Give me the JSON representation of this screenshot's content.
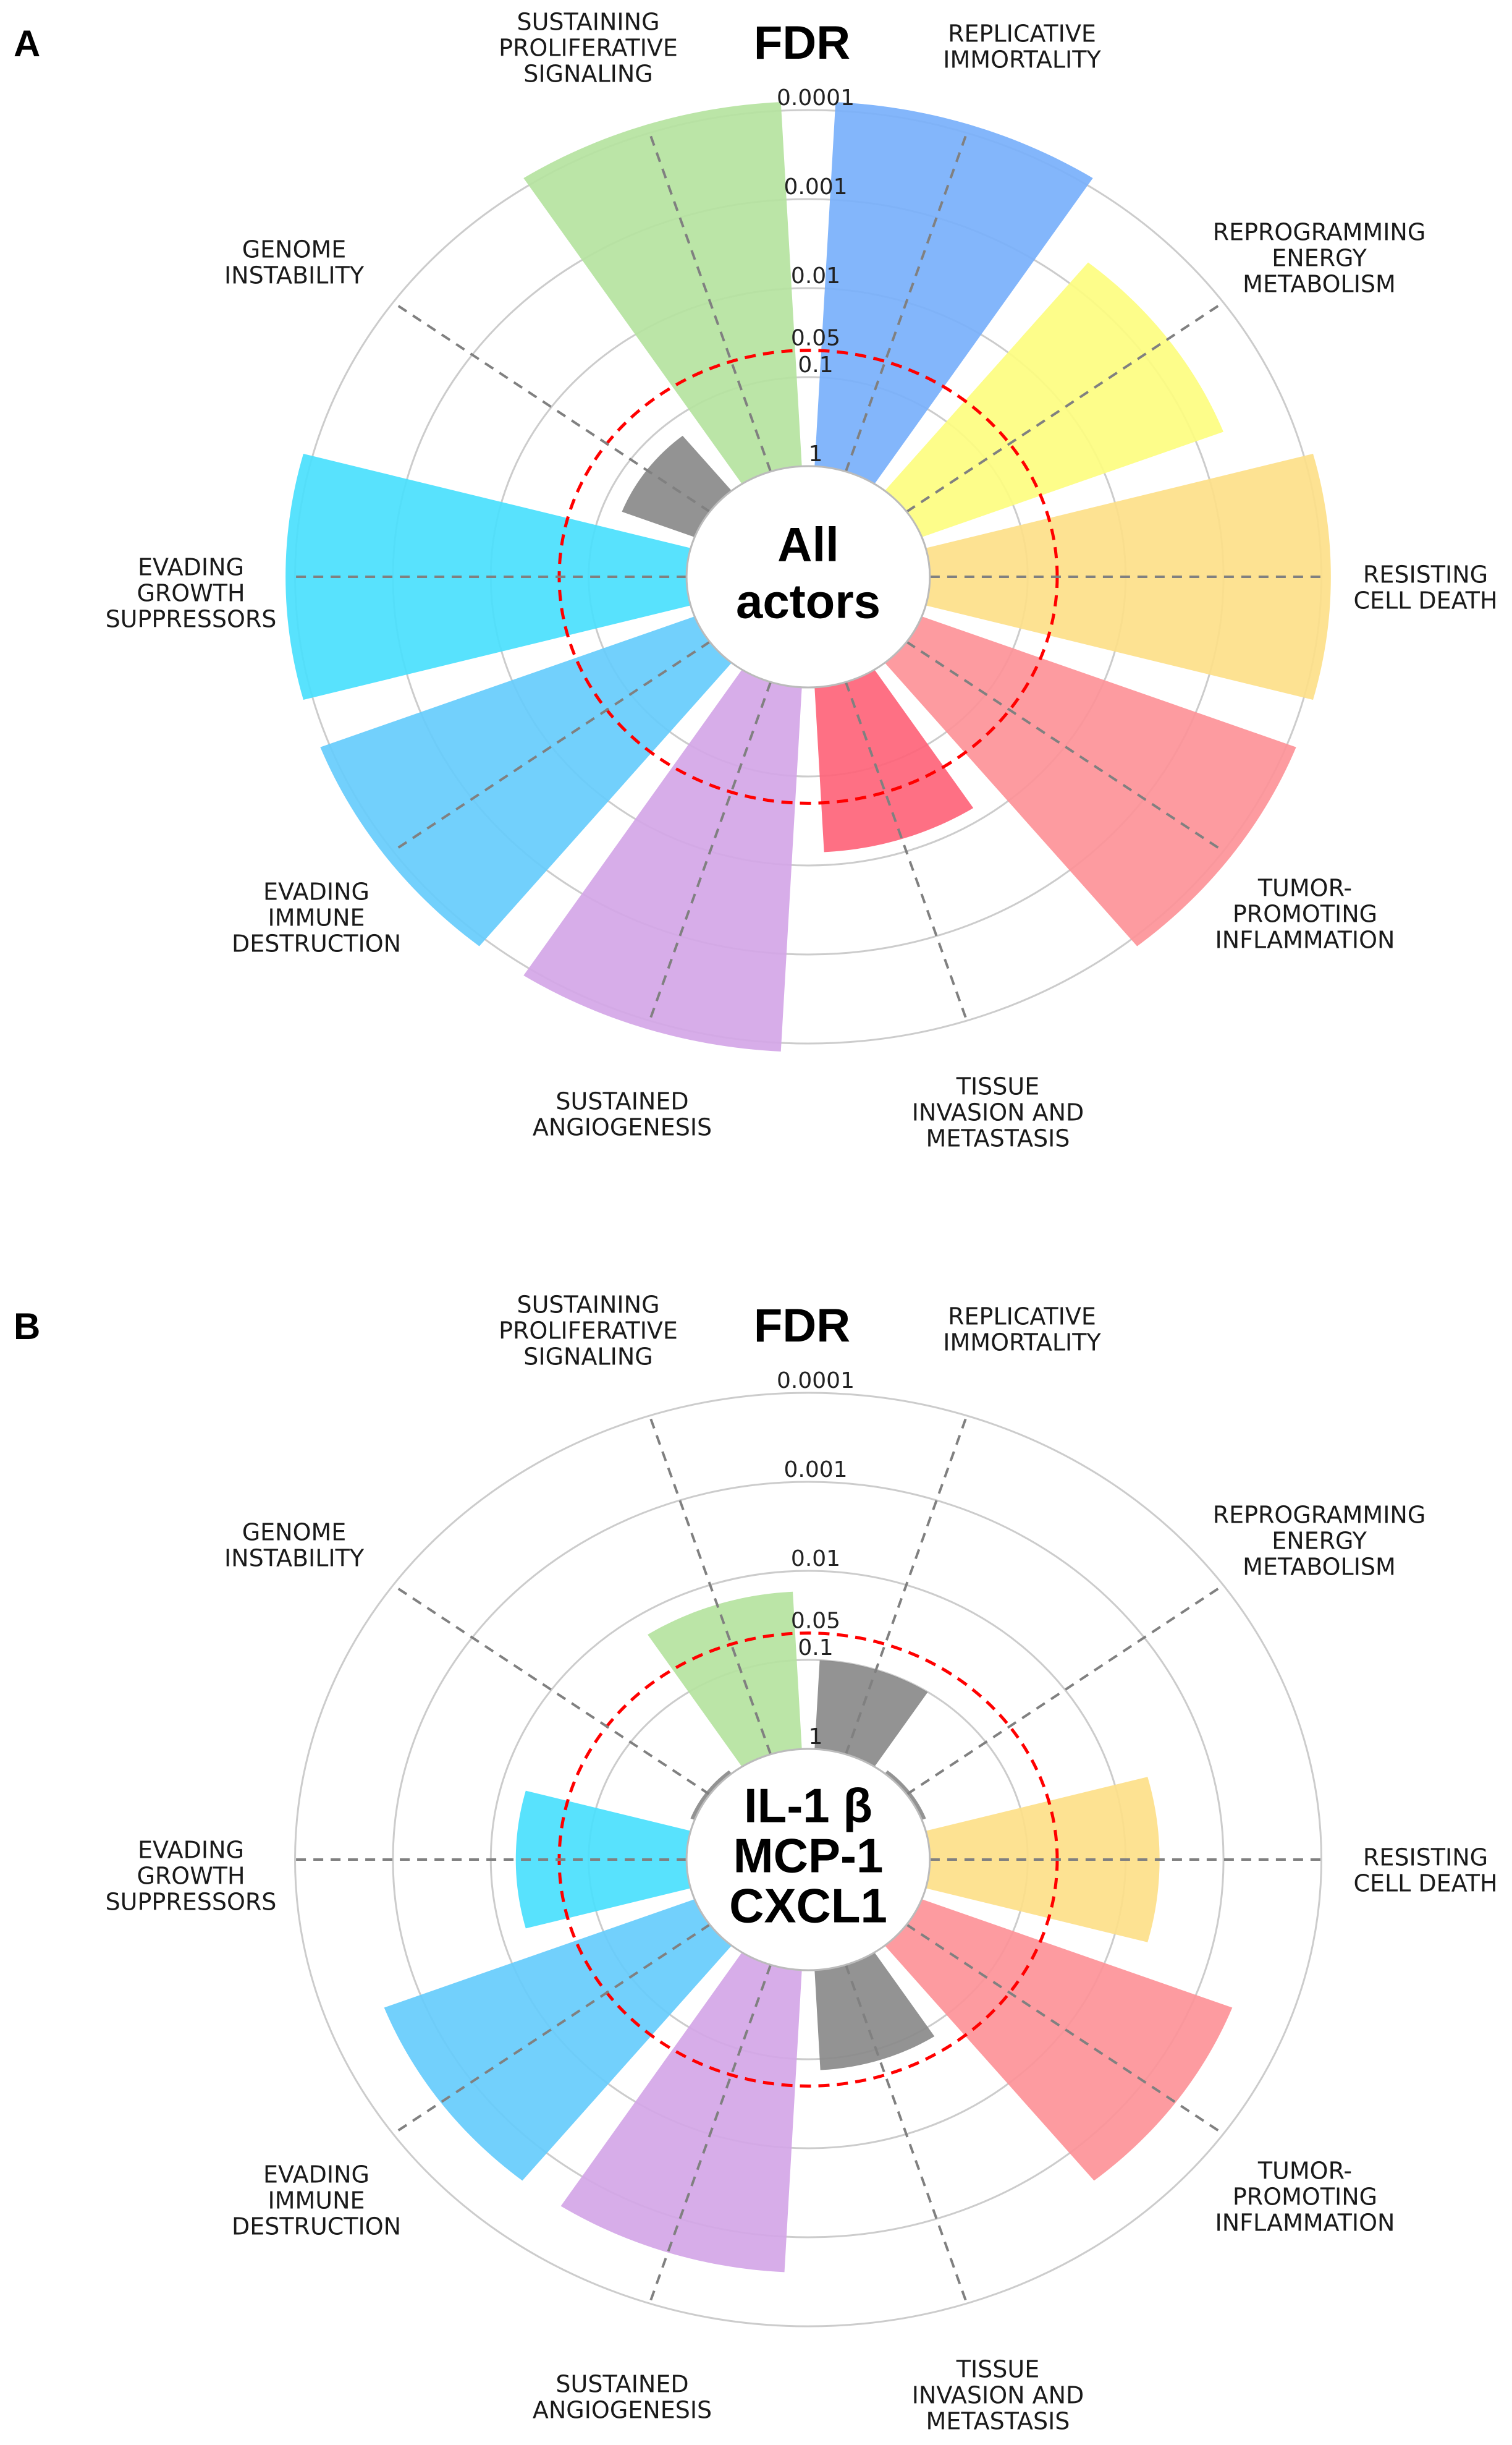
{
  "chart_data": [
    {
      "panel_label": "A",
      "type": "polar_bar",
      "title": "FDR",
      "center_label": [
        "All",
        "actors"
      ],
      "radial_scale": "log",
      "radial_ticks": [
        "0.0001",
        "0.001",
        "0.01",
        "0.05",
        "0.1",
        "1"
      ],
      "threshold": 0.05,
      "threshold_color": "#ff0000",
      "categories": [
        [
          "SUSTAINING",
          "PROLIFERATIVE",
          "SIGNALING"
        ],
        [
          "REPLICATIVE",
          "IMMORTALITY"
        ],
        [
          "REPROGRAMMING",
          "ENERGY",
          "METABOLISM"
        ],
        [
          "RESISTING",
          "CELL DEATH"
        ],
        [
          "TUMOR-",
          "PROMOTING",
          "INFLAMMATION"
        ],
        [
          "TISSUE",
          "INVASION AND",
          "METASTASIS"
        ],
        [
          "SUSTAINED",
          "ANGIOGENESIS"
        ],
        [
          "EVADING",
          "IMMUNE",
          "DESTRUCTION"
        ],
        [
          "EVADING",
          "GROWTH",
          "SUPPRESSORS"
        ],
        [
          "GENOME",
          "INSTABILITY"
        ]
      ],
      "values": [
        8e-05,
        8e-05,
        0.0005,
        8e-05,
        8e-05,
        0.014,
        8e-05,
        8e-05,
        8e-05,
        0.16
      ],
      "bar_colors": [
        "#b5e3a0",
        "#78b0fb",
        "#fdfd80",
        "#fde089",
        "#fd9398",
        "#fe6479",
        "#d4a6e7",
        "#66ccfc",
        "#4adffd",
        "#8a8a8a"
      ]
    },
    {
      "panel_label": "B",
      "type": "polar_bar",
      "title": "FDR",
      "center_label": [
        "IL-1 β",
        "MCP-1",
        "CXCL1"
      ],
      "radial_scale": "log",
      "radial_ticks": [
        "0.0001",
        "0.001",
        "0.01",
        "0.05",
        "0.1",
        "1"
      ],
      "threshold": 0.05,
      "threshold_color": "#ff0000",
      "categories": [
        [
          "SUSTAINING",
          "PROLIFERATIVE",
          "SIGNALING"
        ],
        [
          "REPLICATIVE",
          "IMMORTALITY"
        ],
        [
          "REPROGRAMMING",
          "ENERGY",
          "METABOLISM"
        ],
        [
          "RESISTING",
          "CELL DEATH"
        ],
        [
          "TUMOR-",
          "PROMOTING",
          "INFLAMMATION"
        ],
        [
          "TISSUE",
          "INVASION AND",
          "METASTASIS"
        ],
        [
          "SUSTAINED",
          "ANGIOGENESIS"
        ],
        [
          "EVADING",
          "IMMUNE",
          "DESTRUCTION"
        ],
        [
          "EVADING",
          "GROWTH",
          "SUPPRESSORS"
        ],
        [
          "GENOME",
          "INSTABILITY"
        ]
      ],
      "values": [
        0.017,
        0.1,
        0.9,
        0.0045,
        0.0004,
        0.075,
        0.0004,
        0.0004,
        0.018,
        0.9
      ],
      "bar_colors": [
        "#b5e3a0",
        "#8a8a8a",
        "#8a8a8a",
        "#fde089",
        "#fd9398",
        "#8a8a8a",
        "#d4a6e7",
        "#66ccfc",
        "#4adffd",
        "#8a8a8a"
      ]
    }
  ]
}
